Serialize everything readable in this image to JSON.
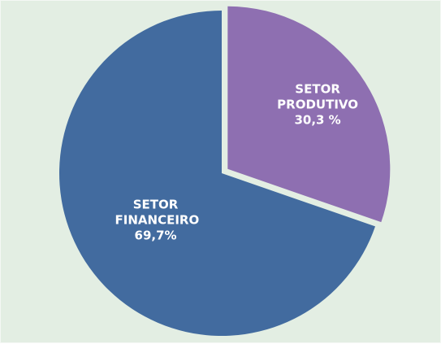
{
  "chart_data": {
    "type": "pie",
    "categories": [
      "SETOR PRODUTIVO",
      "SETOR FINANCEIRO"
    ],
    "values": [
      30.3,
      69.7
    ],
    "value_labels": [
      "30,3 %",
      "69,7%"
    ],
    "colors": [
      "#8e6fb1",
      "#426b9f"
    ]
  }
}
